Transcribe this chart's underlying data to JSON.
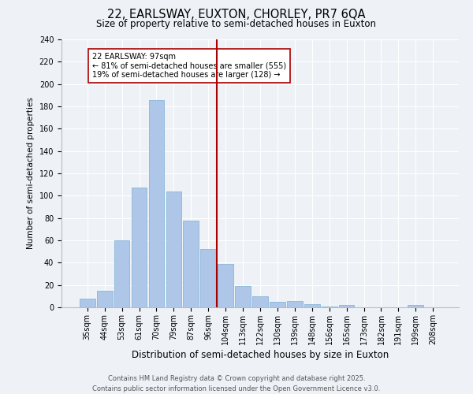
{
  "title1": "22, EARLSWAY, EUXTON, CHORLEY, PR7 6QA",
  "title2": "Size of property relative to semi-detached houses in Euxton",
  "xlabel": "Distribution of semi-detached houses by size in Euxton",
  "ylabel": "Number of semi-detached properties",
  "categories": [
    "35sqm",
    "44sqm",
    "53sqm",
    "61sqm",
    "70sqm",
    "79sqm",
    "87sqm",
    "96sqm",
    "104sqm",
    "113sqm",
    "122sqm",
    "130sqm",
    "139sqm",
    "148sqm",
    "156sqm",
    "165sqm",
    "173sqm",
    "182sqm",
    "191sqm",
    "199sqm",
    "208sqm"
  ],
  "values": [
    8,
    15,
    60,
    107,
    186,
    104,
    78,
    52,
    39,
    19,
    10,
    5,
    6,
    3,
    1,
    2,
    0,
    0,
    0,
    2,
    0
  ],
  "bar_color": "#aec6e8",
  "bar_edge_color": "#7aafd4",
  "vline_x_index": 7.5,
  "vline_color": "#aa0000",
  "annotation_text": "22 EARLSWAY: 97sqm\n← 81% of semi-detached houses are smaller (555)\n19% of semi-detached houses are larger (128) →",
  "annotation_box_color": "#ffffff",
  "annotation_box_edge": "#aa0000",
  "ylim": [
    0,
    240
  ],
  "yticks": [
    0,
    20,
    40,
    60,
    80,
    100,
    120,
    140,
    160,
    180,
    200,
    220,
    240
  ],
  "bg_color": "#eef2f7",
  "footnote": "Contains HM Land Registry data © Crown copyright and database right 2025.\nContains public sector information licensed under the Open Government Licence v3.0.",
  "title1_fontsize": 10.5,
  "title2_fontsize": 8.5,
  "xlabel_fontsize": 8.5,
  "ylabel_fontsize": 7.5,
  "tick_fontsize": 7,
  "annotation_fontsize": 7,
  "footnote_fontsize": 6
}
